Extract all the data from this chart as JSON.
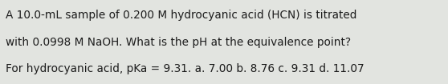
{
  "text": "A 10.0-mL sample of 0.200 M hydrocyanic acid (HCN) is titrated with 0.0998 M NaOH. What is the pH at the equivalence point? For hydrocyanic acid, pKa = 9.31. a. 7.00 b. 8.76 c. 9.31 d. 11.07",
  "background_color": "#e2e4e0",
  "text_color": "#1c1c1c",
  "font_size": 9.8,
  "fig_width": 5.58,
  "fig_height": 1.05,
  "line1": "A 10.0-mL sample of 0.200 M hydrocyanic acid (HCN) is titrated",
  "line2": "with 0.0998 M NaOH. What is the pH at the equivalence point?",
  "line3": "For hydrocyanic acid, pKa = 9.31. a. 7.00 b. 8.76 c. 9.31 d. 11.07"
}
